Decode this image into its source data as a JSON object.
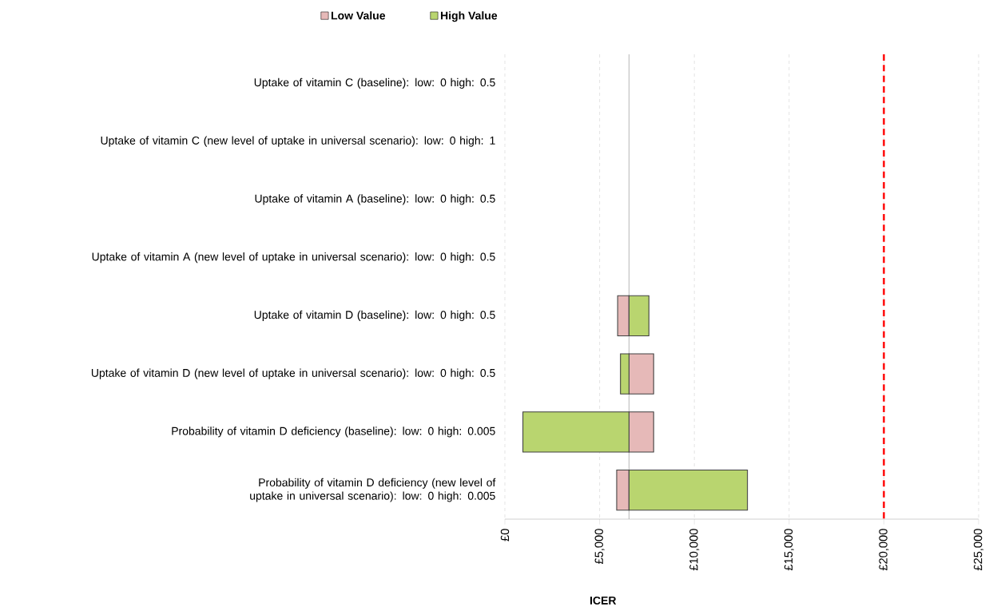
{
  "chart_data": {
    "type": "bar",
    "orientation": "horizontal",
    "xlabel": "ICER",
    "categories": [
      "Uptake of vitamin C (baseline): low: 0 high: 0.5",
      "Uptake of vitamin C (new level of uptake in universal scenario): low: 0 high: 1",
      "Uptake of vitamin A (baseline): low: 0 high: 0.5",
      "Uptake of vitamin A (new level of uptake in universal scenario): low: 0 high: 0.5",
      "Uptake of vitamin D (baseline): low: 0 high: 0.5",
      "Uptake of vitamin D (new level of uptake in universal scenario): low: 0 high: 0.5",
      "Probability of vitamin D deficiency (baseline): low: 0 high: 0.005",
      "Probability of vitamin D deficiency (new level of uptake in universal scenario): low: 0 high: 0.005"
    ],
    "series": [
      {
        "name": "Low Value",
        "color": "#e6b9b8",
        "base": [
          null,
          null,
          null,
          null,
          5950,
          6550,
          6550,
          5900
        ],
        "values": [
          null,
          null,
          null,
          null,
          600,
          1300,
          1300,
          650
        ]
      },
      {
        "name": "High Value",
        "color": "#b9d56f",
        "base": [
          null,
          null,
          null,
          null,
          6550,
          6100,
          950,
          6550
        ],
        "values": [
          null,
          null,
          null,
          null,
          1050,
          450,
          5600,
          6250
        ]
      }
    ],
    "xlim": [
      0,
      25000
    ],
    "xticks": [
      {
        "value": 0,
        "label": "£0"
      },
      {
        "value": 5000,
        "label": "£5,000"
      },
      {
        "value": 10000,
        "label": "£10,000"
      },
      {
        "value": 15000,
        "label": "£15,000"
      },
      {
        "value": 20000,
        "label": "£20,000"
      },
      {
        "value": 25000,
        "label": "£25,000"
      }
    ],
    "ref_lines": [
      {
        "axis": "x",
        "value": 6550,
        "color": "#a6a6a6",
        "line_style": "solid"
      },
      {
        "axis": "x",
        "value": 20000,
        "color": "#ff0000",
        "line_style": "dashed"
      }
    ],
    "grid": "x",
    "legend": "top"
  }
}
